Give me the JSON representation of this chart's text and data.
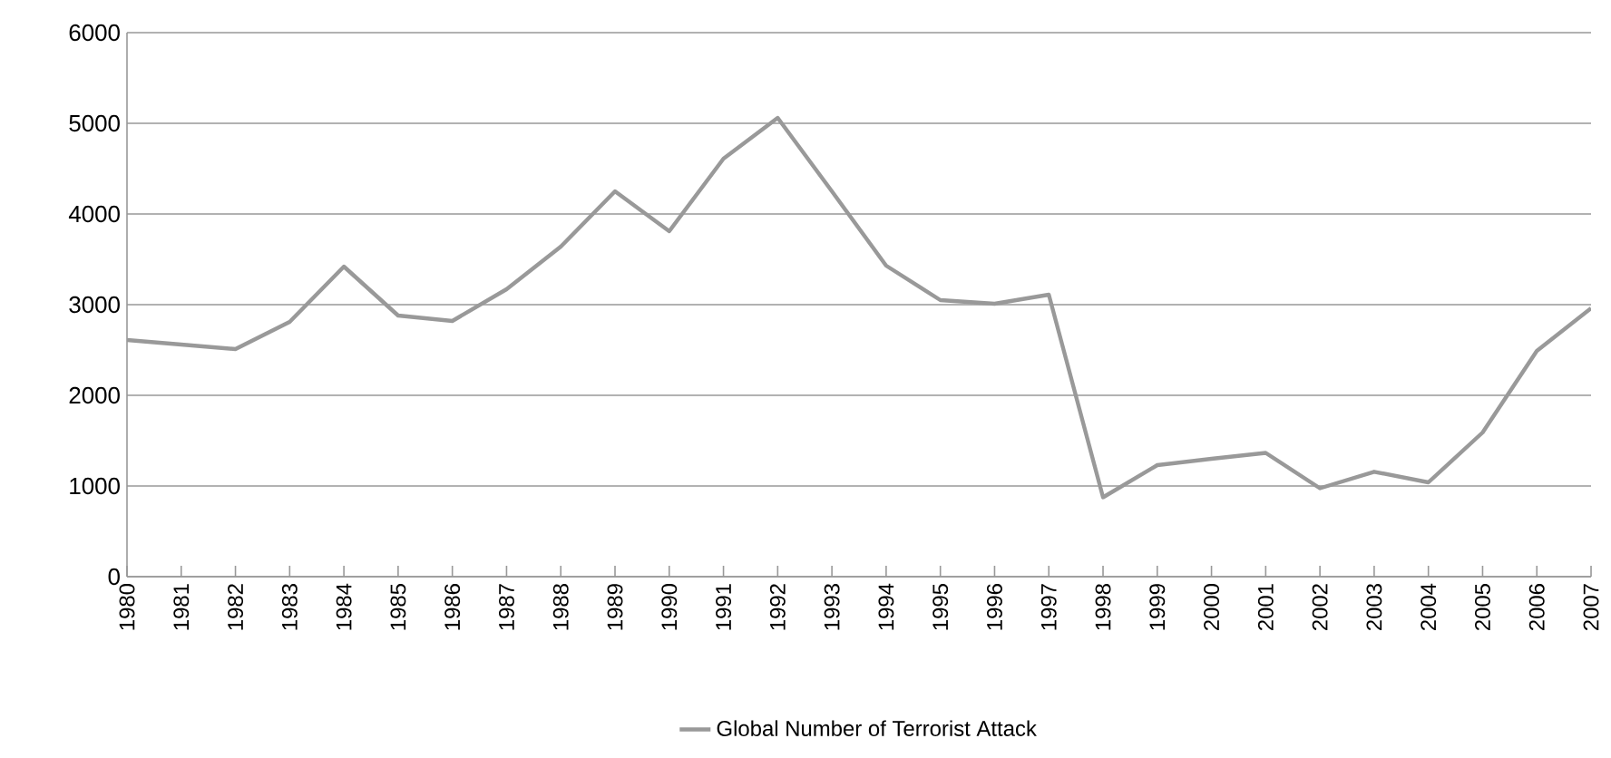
{
  "chart_data": {
    "type": "line",
    "categories": [
      "1980",
      "1981",
      "1982",
      "1983",
      "1984",
      "1985",
      "1986",
      "1987",
      "1988",
      "1989",
      "1990",
      "1991",
      "1992",
      "1993",
      "1994",
      "1995",
      "1996",
      "1997",
      "1998",
      "1999",
      "2000",
      "2001",
      "2002",
      "2003",
      "2004",
      "2005",
      "2006",
      "2007"
    ],
    "series": [
      {
        "name": "Global Number of Terrorist Attack",
        "color": "#999999",
        "values": [
          2610,
          2560,
          2510,
          2810,
          3420,
          2880,
          2820,
          3170,
          3640,
          4250,
          3810,
          4610,
          5060,
          4250,
          3430,
          3050,
          3010,
          3110,
          875,
          1230,
          1300,
          1365,
          975,
          1157,
          1040,
          1590,
          2490,
          2960
        ]
      }
    ],
    "ylim": [
      0,
      6000
    ],
    "yticks": [
      0,
      1000,
      2000,
      3000,
      4000,
      5000,
      6000
    ],
    "grid": "y",
    "legend": "bottom",
    "marker": "none",
    "line_style": "solid"
  }
}
